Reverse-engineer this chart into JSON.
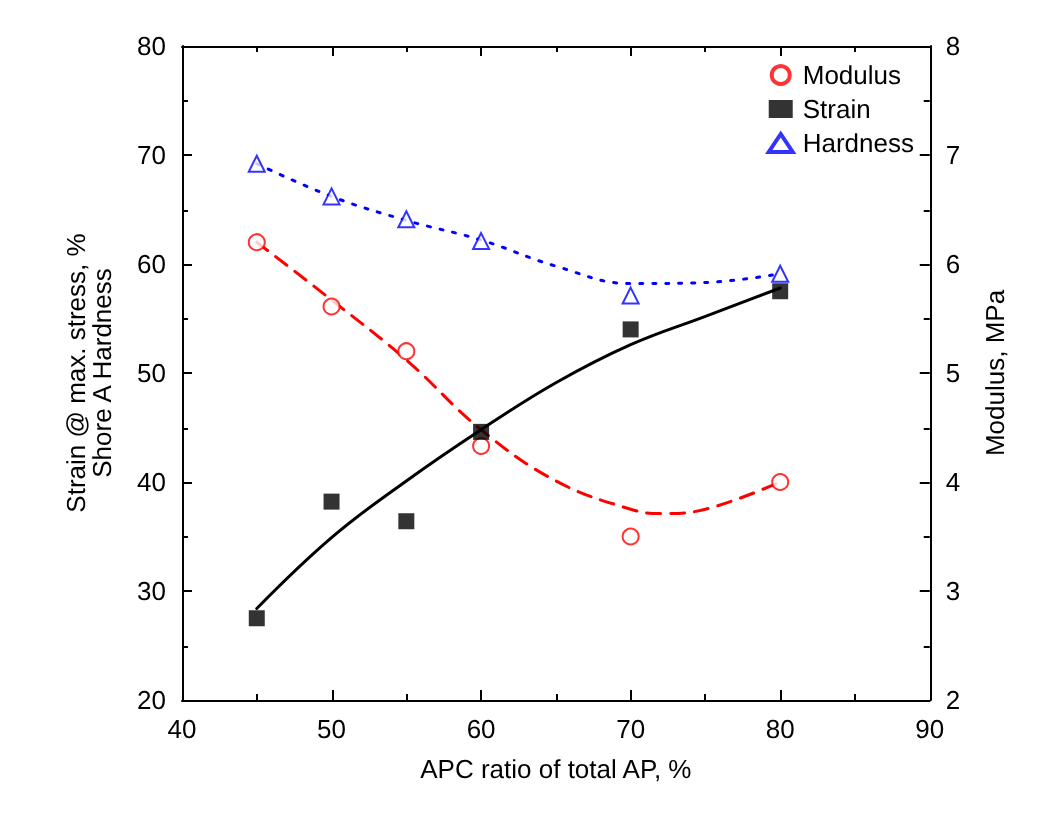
{
  "chart_data": {
    "type": "scatter",
    "xlabel": "APC ratio of total AP, %",
    "ylabel": "Strain @ max. stress, %\nShore A Hardness",
    "y2label": "Modulus, MPa",
    "xlim": [
      40,
      90
    ],
    "xticks": [
      40,
      50,
      60,
      70,
      80,
      90
    ],
    "ylim": [
      20,
      80
    ],
    "yticks": [
      20,
      30,
      40,
      50,
      60,
      70,
      80
    ],
    "y2lim": [
      2,
      8
    ],
    "y2ticks": [
      2,
      3,
      4,
      5,
      6,
      7,
      8
    ],
    "grid": false,
    "legend": "top right",
    "series": [
      {
        "name": "Modulus",
        "axis": "y2",
        "color": "#ff0000",
        "marker": "circle",
        "x": [
          45,
          50,
          55,
          60,
          70,
          80
        ],
        "values": [
          6.2,
          5.61,
          5.2,
          4.33,
          3.5,
          4.0
        ]
      },
      {
        "name": "Strain",
        "color": "#000000",
        "marker": "square",
        "x": [
          45,
          50,
          55,
          60,
          70,
          80
        ],
        "values": [
          27.5,
          38.2,
          36.4,
          44.6,
          54.0,
          57.5
        ]
      },
      {
        "name": "Hardness",
        "color": "#0000ff",
        "marker": "triangle",
        "x": [
          45,
          50,
          55,
          60,
          70,
          80
        ],
        "values": [
          69.2,
          66.2,
          64.1,
          62.1,
          57.1,
          59.1
        ]
      },
      {
        "type": "line",
        "axis": "y2",
        "color": "#ff0000",
        "marker": "none",
        "line_style": "dashed",
        "x": [
          45,
          50,
          55,
          60,
          65,
          70,
          72,
          75,
          80
        ],
        "values": [
          6.2,
          5.67,
          5.12,
          4.48,
          4.01,
          3.75,
          3.71,
          3.75,
          4.0
        ]
      },
      {
        "type": "line",
        "color": "#000000",
        "marker": "none",
        "line_style": "solid",
        "x": [
          45,
          50,
          55,
          60,
          65,
          70,
          75,
          80
        ],
        "values": [
          28.4,
          34.9,
          40.1,
          44.8,
          49.1,
          52.6,
          55.2,
          57.8
        ]
      },
      {
        "type": "line",
        "color": "#0000ff",
        "marker": "none",
        "line_style": "dotted",
        "x": [
          45,
          50,
          55,
          60,
          65,
          70,
          75,
          80
        ],
        "values": [
          69.2,
          66.2,
          64.0,
          62.2,
          59.8,
          58.2,
          58.3,
          59.1
        ]
      }
    ]
  }
}
